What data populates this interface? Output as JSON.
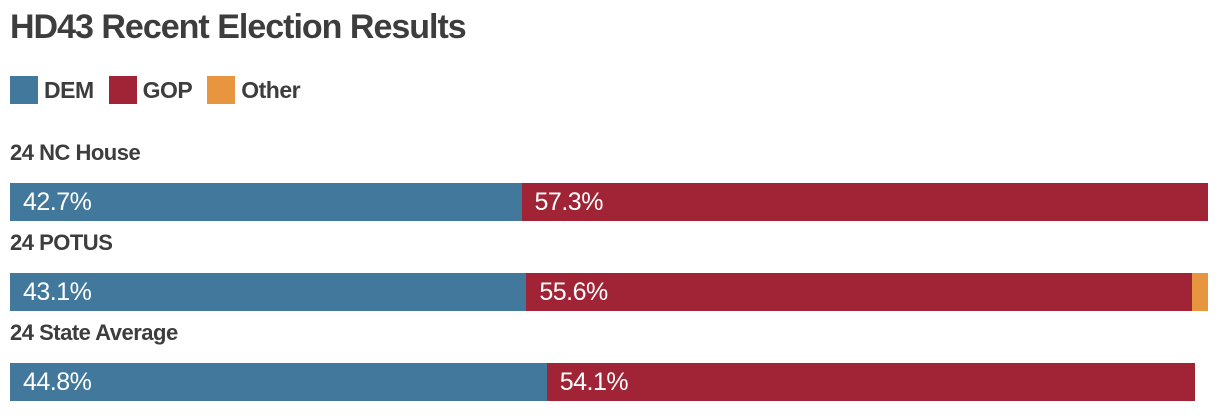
{
  "title": "HD43 Recent Election Results",
  "colors": {
    "dem": "#42789B",
    "gop": "#A02435",
    "other": "#E8953F",
    "heading_text": "#3D3D3D",
    "bar_label_text": "#FFFFFF",
    "background": "#FFFFFF"
  },
  "legend": {
    "items": [
      {
        "label": "DEM",
        "color": "#42789B"
      },
      {
        "label": "GOP",
        "color": "#A02435"
      },
      {
        "label": "Other",
        "color": "#E8953F"
      }
    ]
  },
  "chart_data": {
    "type": "bar",
    "orientation": "horizontal",
    "stacked": true,
    "title": "HD43 Recent Election Results",
    "categories": [
      "24 NC House",
      "24 POTUS",
      "24 State Average"
    ],
    "series": [
      {
        "name": "DEM",
        "color": "#42789B",
        "values": [
          42.7,
          43.1,
          44.8
        ]
      },
      {
        "name": "GOP",
        "color": "#A02435",
        "values": [
          57.3,
          55.6,
          54.1
        ]
      },
      {
        "name": "Other",
        "color": "#E8953F",
        "values": [
          0,
          1.3,
          0
        ]
      }
    ],
    "value_unit": "%",
    "xlim": [
      0,
      100
    ],
    "grid": false,
    "axes_visible": false,
    "data_labels": "inside-start, white, DEM and GOP only",
    "legend_position": "top-left"
  },
  "rows": [
    {
      "label": "24 NC House",
      "segments": [
        {
          "name": "DEM",
          "pct": 42.7,
          "value_label": "42.7%",
          "color": "#42789B"
        },
        {
          "name": "GOP",
          "pct": 57.3,
          "value_label": "57.3%",
          "color": "#A02435"
        }
      ]
    },
    {
      "label": "24 POTUS",
      "segments": [
        {
          "name": "DEM",
          "pct": 43.1,
          "value_label": "43.1%",
          "color": "#42789B"
        },
        {
          "name": "GOP",
          "pct": 55.6,
          "value_label": "55.6%",
          "color": "#A02435"
        },
        {
          "name": "Other",
          "pct": 1.3,
          "value_label": "",
          "color": "#E8953F"
        }
      ]
    },
    {
      "label": "24 State Average",
      "segments": [
        {
          "name": "DEM",
          "pct": 44.8,
          "value_label": "44.8%",
          "color": "#42789B"
        },
        {
          "name": "GOP",
          "pct": 54.1,
          "value_label": "54.1%",
          "color": "#A02435"
        }
      ]
    }
  ]
}
